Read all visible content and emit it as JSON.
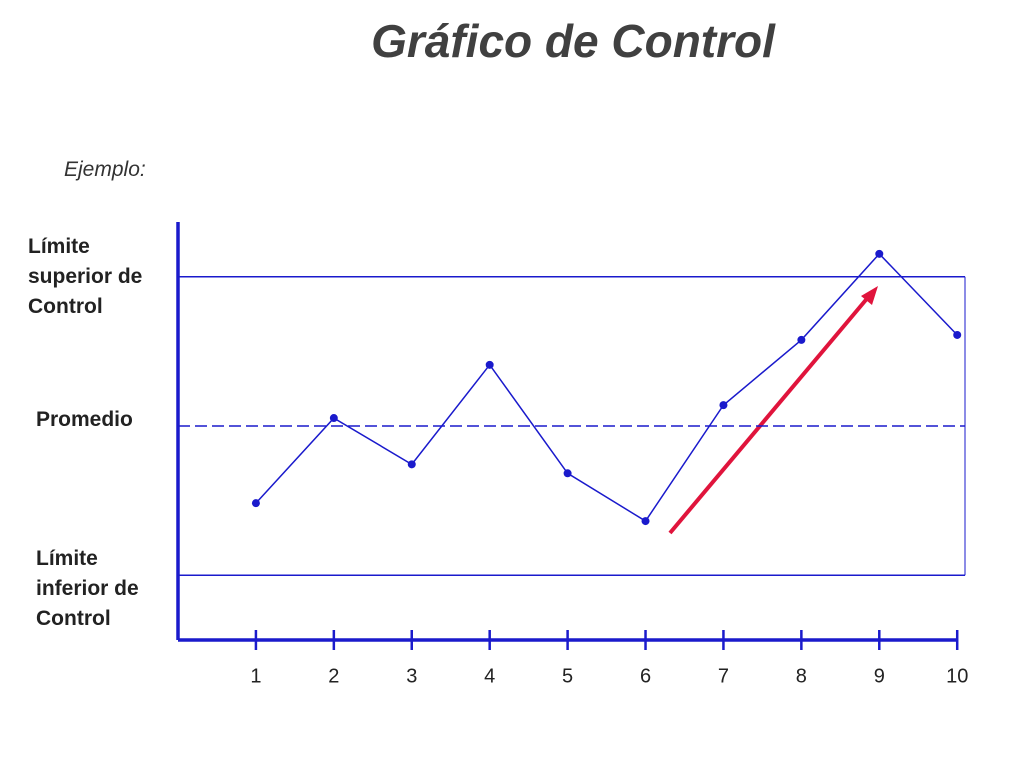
{
  "chart_data": {
    "type": "line",
    "title": "Gráfico de Control",
    "subtitle": "Ejemplo:",
    "x": [
      1,
      2,
      3,
      4,
      5,
      6,
      7,
      8,
      9,
      10
    ],
    "xlim": [
      0,
      10.1
    ],
    "xticks": [
      1,
      2,
      3,
      4,
      5,
      6,
      7,
      8,
      9,
      10
    ],
    "series": [
      {
        "color": "#1a1acc",
        "values": [
          -1.55,
          0.16,
          -0.77,
          1.23,
          -0.95,
          -1.91,
          0.42,
          1.73,
          3.46,
          1.83
        ]
      }
    ],
    "ylim": [
      -4.3,
      4.1
    ],
    "yticks": [
      {
        "value": 3,
        "label": "Límite superior de Control"
      },
      {
        "value": 0,
        "label": "Promedio"
      },
      {
        "value": -3,
        "label": "Límite inferior de Control"
      }
    ],
    "grid": true
  }
}
